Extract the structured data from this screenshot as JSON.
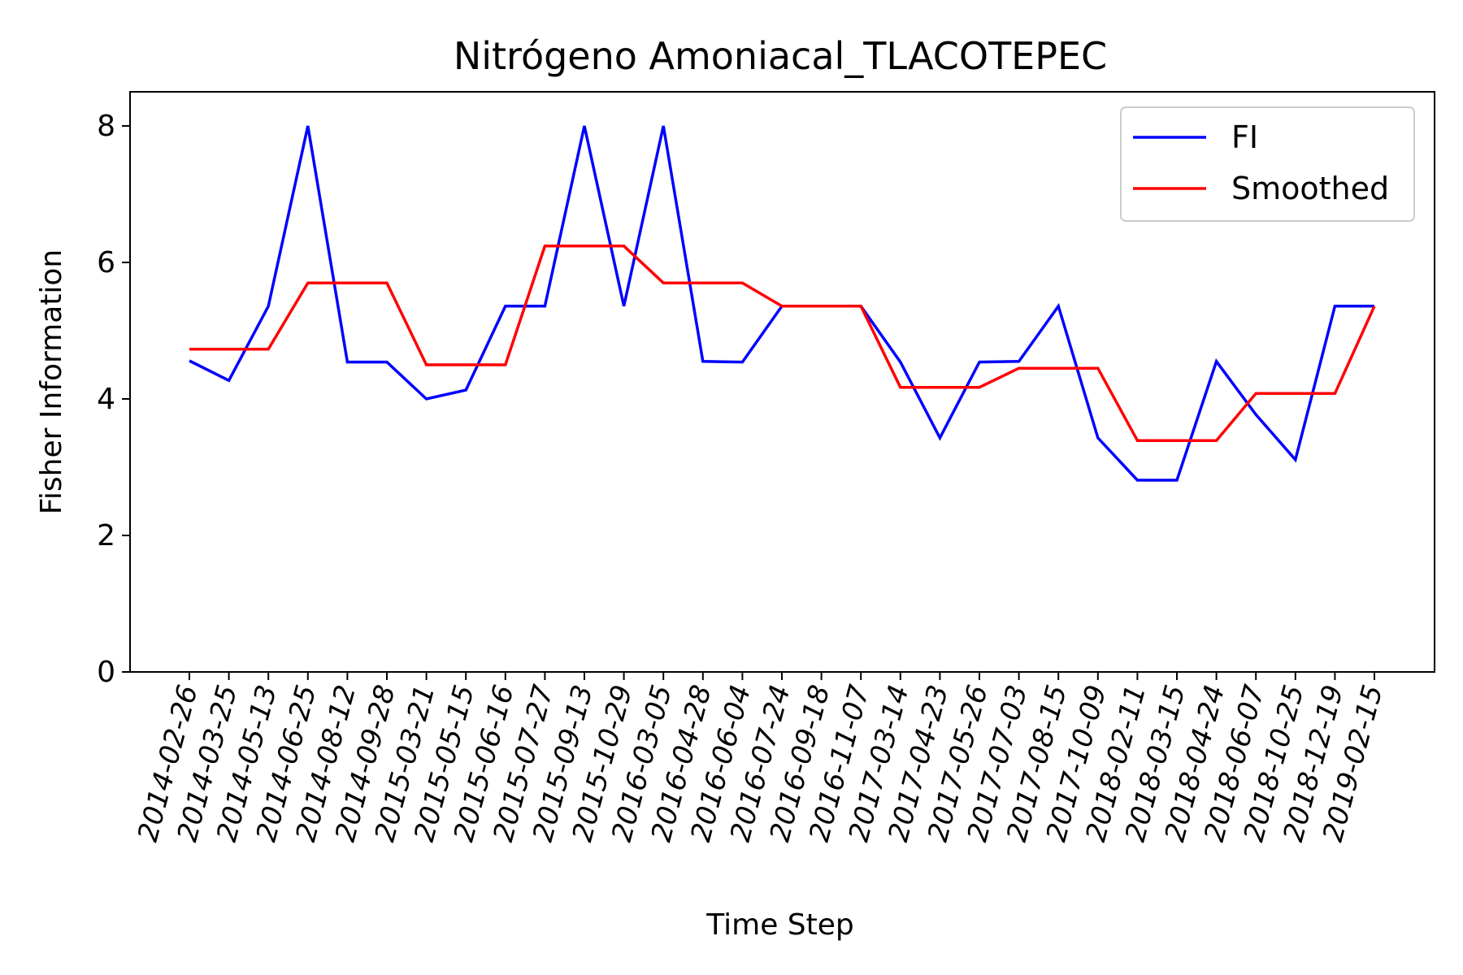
{
  "chart_data": {
    "type": "line",
    "title": "Nitrógeno Amoniacal_TLACOTEPEC",
    "xlabel": "Time Step",
    "ylabel": "Fisher Information",
    "ylim": [
      0,
      8.5
    ],
    "yticks": [
      "0",
      "2",
      "4",
      "6",
      "8"
    ],
    "grid": false,
    "legend_position": "top-right",
    "categories": [
      "2014-02-26",
      "2014-03-25",
      "2014-05-13",
      "2014-06-25",
      "2014-08-12",
      "2014-09-28",
      "2015-03-21",
      "2015-05-15",
      "2015-06-16",
      "2015-07-27",
      "2015-09-13",
      "2015-10-29",
      "2016-03-05",
      "2016-04-28",
      "2016-06-04",
      "2016-07-24",
      "2016-09-18",
      "2016-11-07",
      "2017-03-14",
      "2017-04-23",
      "2017-05-26",
      "2017-07-03",
      "2017-08-15",
      "2017-10-09",
      "2018-02-11",
      "2018-03-15",
      "2018-04-24",
      "2018-06-07",
      "2018-10-25",
      "2018-12-19",
      "2019-02-15"
    ],
    "series": [
      {
        "name": "FI",
        "color": "#0000ff",
        "values": [
          4.56,
          4.27,
          5.36,
          8.0,
          4.54,
          4.54,
          4.0,
          4.13,
          5.36,
          5.36,
          8.0,
          5.36,
          8.0,
          4.55,
          4.54,
          5.36,
          5.36,
          5.36,
          4.54,
          3.43,
          4.54,
          4.55,
          5.36,
          3.43,
          2.81,
          2.81,
          4.55,
          3.77,
          3.11,
          5.36,
          5.36
        ]
      },
      {
        "name": "Smoothed",
        "color": "#ff0000",
        "values": [
          4.73,
          4.73,
          4.73,
          5.7,
          5.7,
          5.7,
          4.5,
          4.5,
          4.5,
          6.24,
          6.24,
          6.24,
          5.7,
          5.7,
          5.7,
          5.36,
          5.36,
          5.36,
          4.17,
          4.17,
          4.17,
          4.45,
          4.45,
          4.45,
          3.39,
          3.39,
          3.39,
          4.08,
          4.08,
          4.08,
          5.36
        ]
      }
    ]
  }
}
